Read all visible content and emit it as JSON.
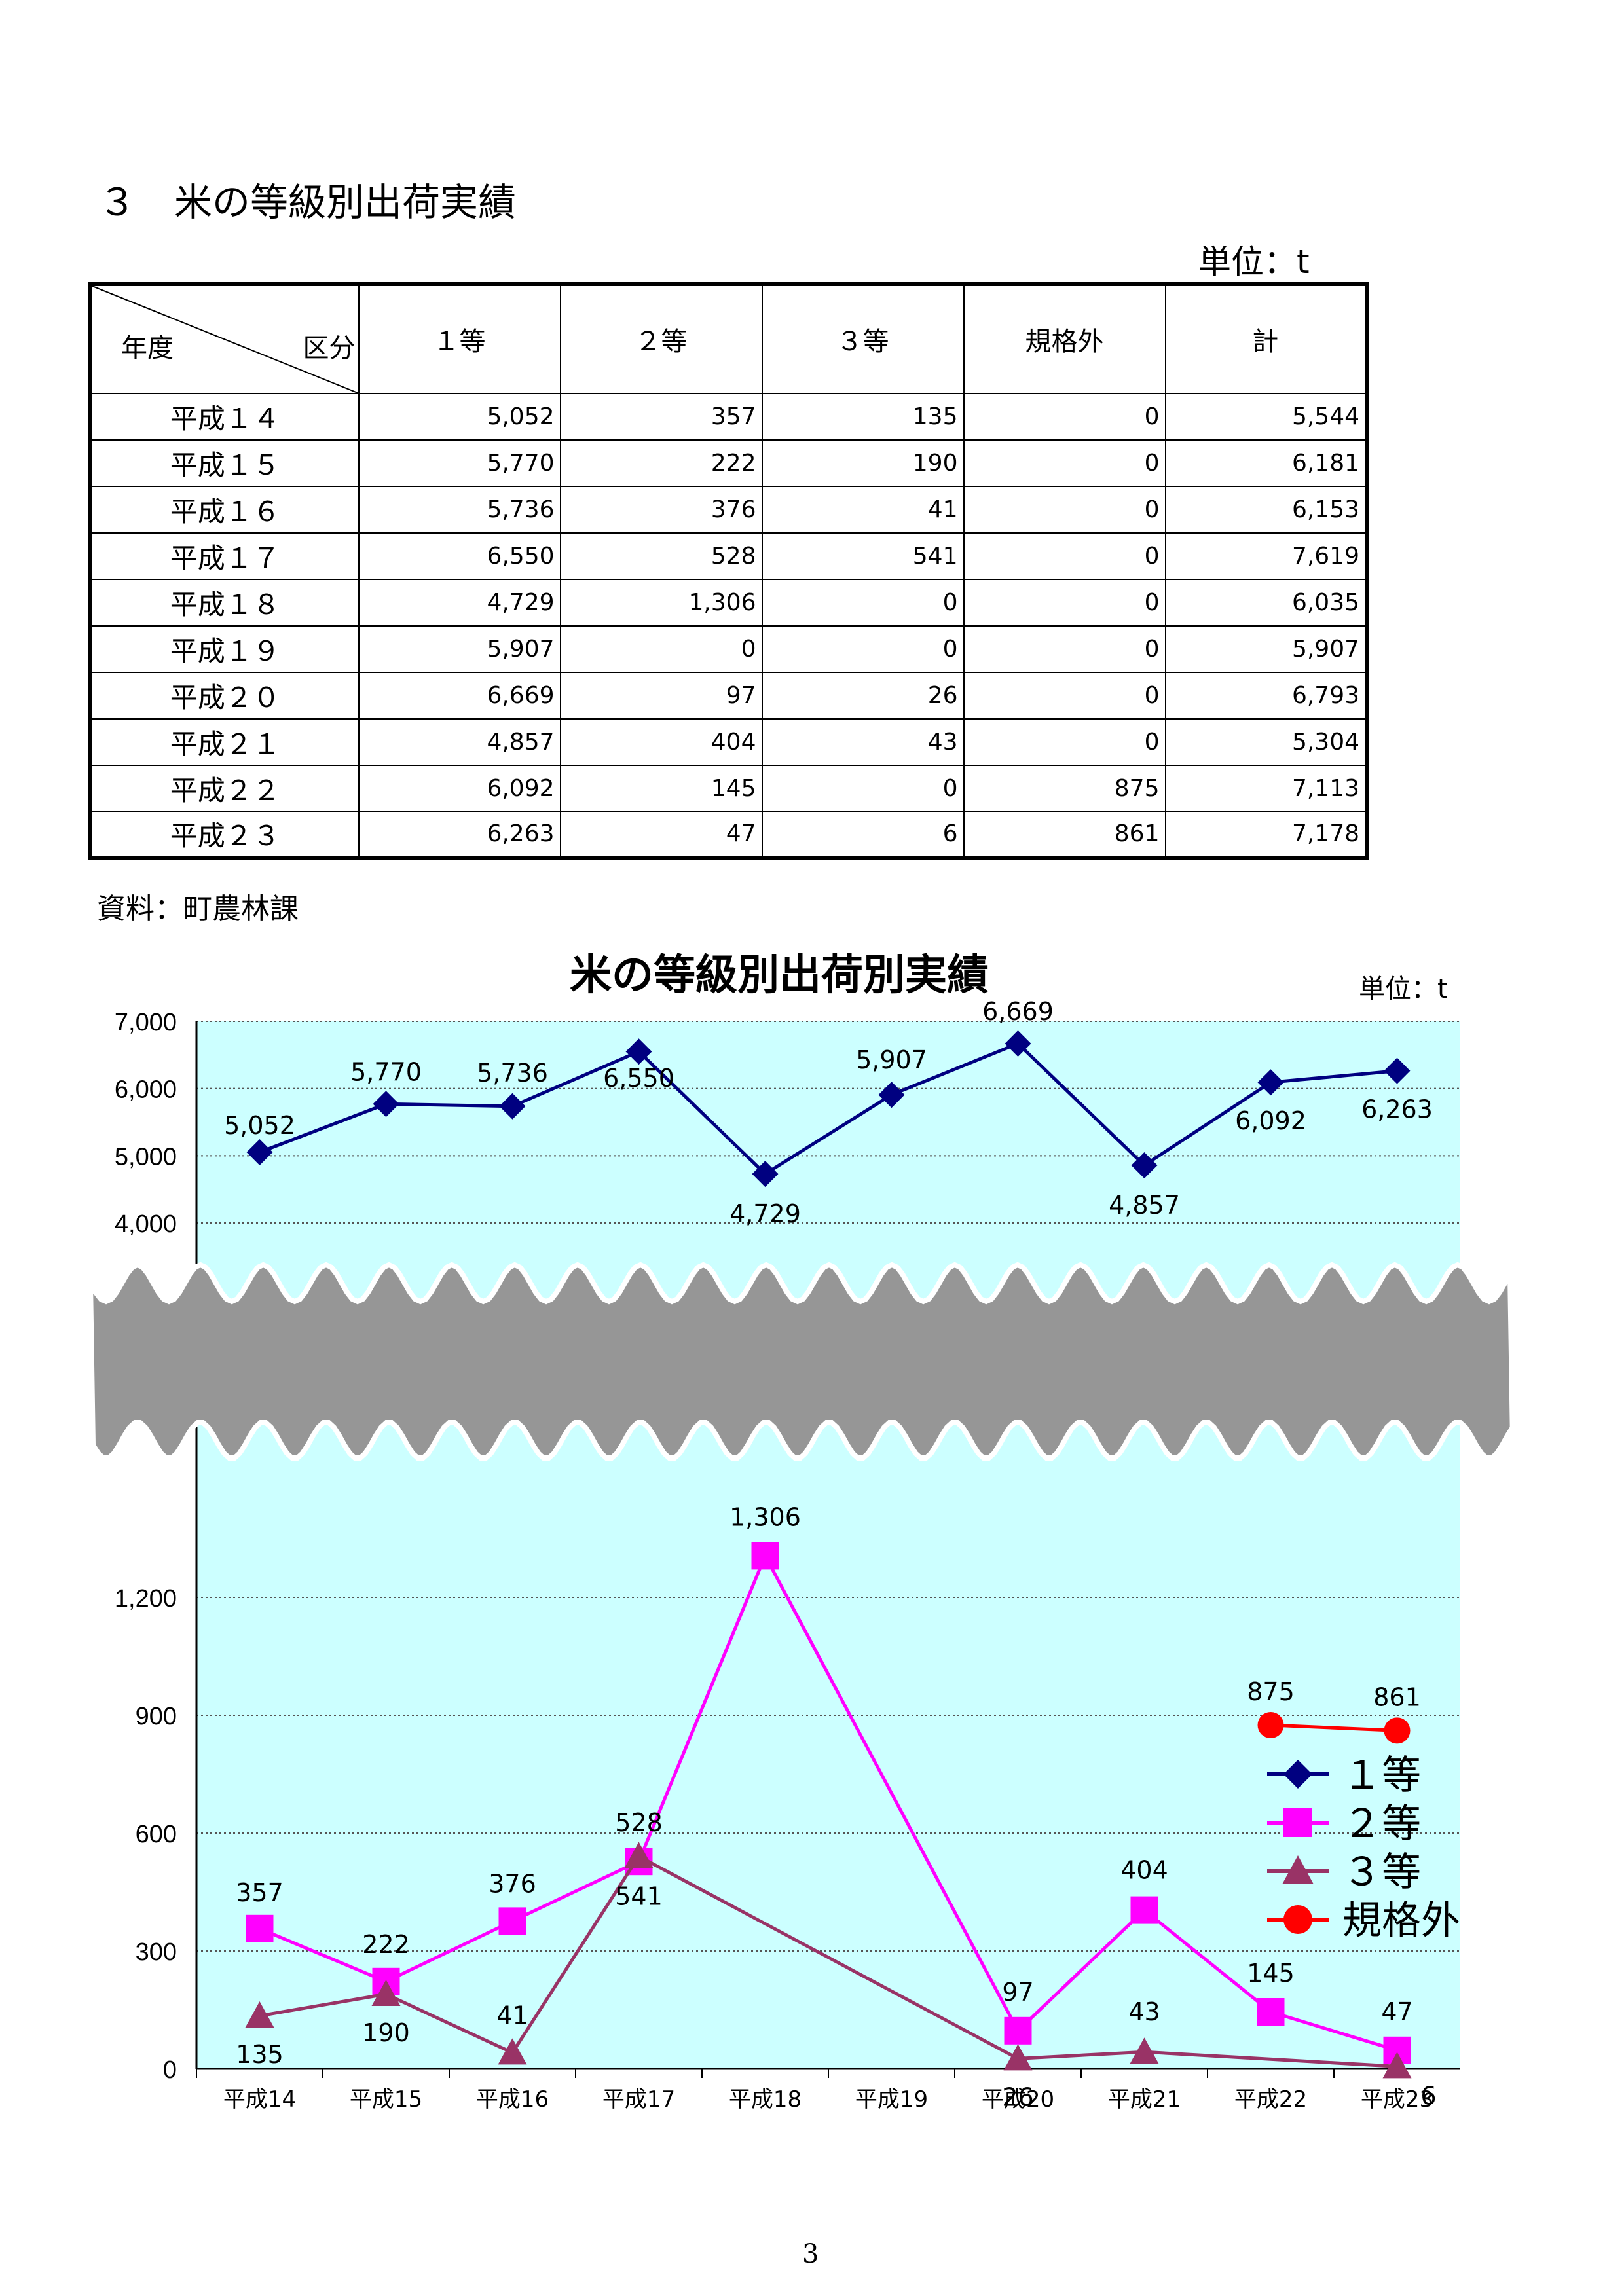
{
  "heading": "３　米の等級別出荷実績",
  "unit_label": "単位：t",
  "table": {
    "corner_left": "年度",
    "corner_right": "区分",
    "columns": [
      "１等",
      "２等",
      "３等",
      "規格外",
      "計"
    ],
    "rows": [
      [
        "平成１４",
        "5,052",
        "357",
        "135",
        "0",
        "5,544"
      ],
      [
        "平成１５",
        "5,770",
        "222",
        "190",
        "0",
        "6,181"
      ],
      [
        "平成１６",
        "5,736",
        "376",
        "41",
        "0",
        "6,153"
      ],
      [
        "平成１７",
        "6,550",
        "528",
        "541",
        "0",
        "7,619"
      ],
      [
        "平成１８",
        "4,729",
        "1,306",
        "0",
        "0",
        "6,035"
      ],
      [
        "平成１９",
        "5,907",
        "0",
        "0",
        "0",
        "5,907"
      ],
      [
        "平成２０",
        "6,669",
        "97",
        "26",
        "0",
        "6,793"
      ],
      [
        "平成２１",
        "4,857",
        "404",
        "43",
        "0",
        "5,304"
      ],
      [
        "平成２２",
        "6,092",
        "145",
        "0",
        "875",
        "7,113"
      ],
      [
        "平成２３",
        "6,263",
        "47",
        "6",
        "861",
        "7,178"
      ]
    ]
  },
  "source": "資料：町農林課",
  "page_number": "3",
  "chart_data": {
    "type": "line",
    "title": "米の等級別出荷別実績",
    "unit": "単位：t",
    "categories": [
      "平成14",
      "平成15",
      "平成16",
      "平成17",
      "平成18",
      "平成19",
      "平成20",
      "平成21",
      "平成22",
      "平成23"
    ],
    "upper_axis": {
      "ylim": [
        4000,
        7000
      ],
      "ticks": [
        "4,000",
        "5,000",
        "6,000",
        "7,000"
      ]
    },
    "lower_axis": {
      "ylim": [
        0,
        1500
      ],
      "ticks": [
        "0",
        "300",
        "600",
        "900",
        "1,200"
      ]
    },
    "axis_break": true,
    "grid": true,
    "legend_position": "right",
    "series": [
      {
        "name": "１等",
        "panel": "upper",
        "color": "#000080",
        "marker": "diamond",
        "values": [
          5052,
          5770,
          5736,
          6550,
          4729,
          5907,
          6669,
          4857,
          6092,
          6263
        ],
        "labels": [
          "5,052",
          "5,770",
          "5,736",
          "6,550",
          "4,729",
          "5,907",
          "6,669",
          "4,857",
          "6,092",
          "6,263"
        ]
      },
      {
        "name": "２等",
        "panel": "lower",
        "color": "#ff00ff",
        "marker": "square",
        "values": [
          357,
          222,
          376,
          528,
          1306,
          null,
          97,
          404,
          145,
          47
        ],
        "labels": [
          "357",
          "222",
          "376",
          "528",
          "1,306",
          "",
          "97",
          "404",
          "145",
          "47"
        ]
      },
      {
        "name": "３等",
        "panel": "lower",
        "color": "#993366",
        "marker": "triangle",
        "values": [
          135,
          190,
          41,
          541,
          null,
          null,
          26,
          43,
          null,
          6
        ],
        "labels": [
          "135",
          "190",
          "41",
          "541",
          "",
          "",
          "26",
          "43",
          "",
          "6"
        ]
      },
      {
        "name": "規格外",
        "panel": "lower",
        "color": "#ff0000",
        "marker": "circle",
        "values": [
          null,
          null,
          null,
          null,
          null,
          null,
          null,
          null,
          875,
          861
        ],
        "labels": [
          "",
          "",
          "",
          "",
          "",
          "",
          "",
          "",
          "875",
          "861"
        ]
      }
    ]
  }
}
